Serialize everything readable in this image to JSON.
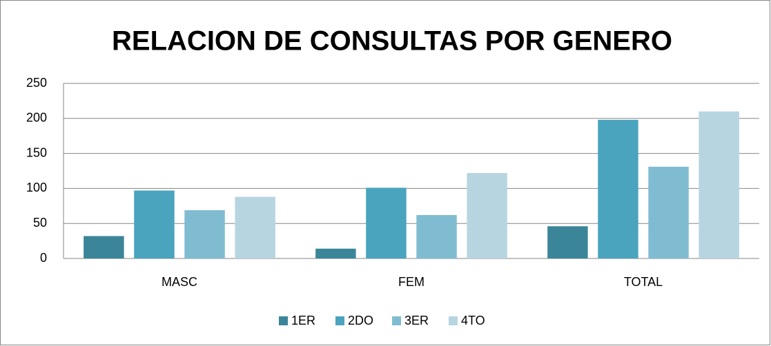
{
  "chart_data": {
    "type": "bar",
    "title": "RELACION DE CONSULTAS POR GENERO",
    "categories": [
      "MASC",
      "FEM",
      "TOTAL"
    ],
    "series": [
      {
        "name": "1ER",
        "color": "#3b8599",
        "values": [
          32,
          14,
          46
        ]
      },
      {
        "name": "2DO",
        "color": "#4aa4bd",
        "values": [
          97,
          101,
          198
        ]
      },
      {
        "name": "3ER",
        "color": "#80bcd1",
        "values": [
          69,
          62,
          131
        ]
      },
      {
        "name": "4TO",
        "color": "#b7d5e1",
        "values": [
          88,
          122,
          210
        ]
      }
    ],
    "ylim": [
      0,
      250
    ],
    "yticks": [
      0,
      50,
      100,
      150,
      200,
      250
    ],
    "grid": true,
    "legend": "bottom"
  }
}
